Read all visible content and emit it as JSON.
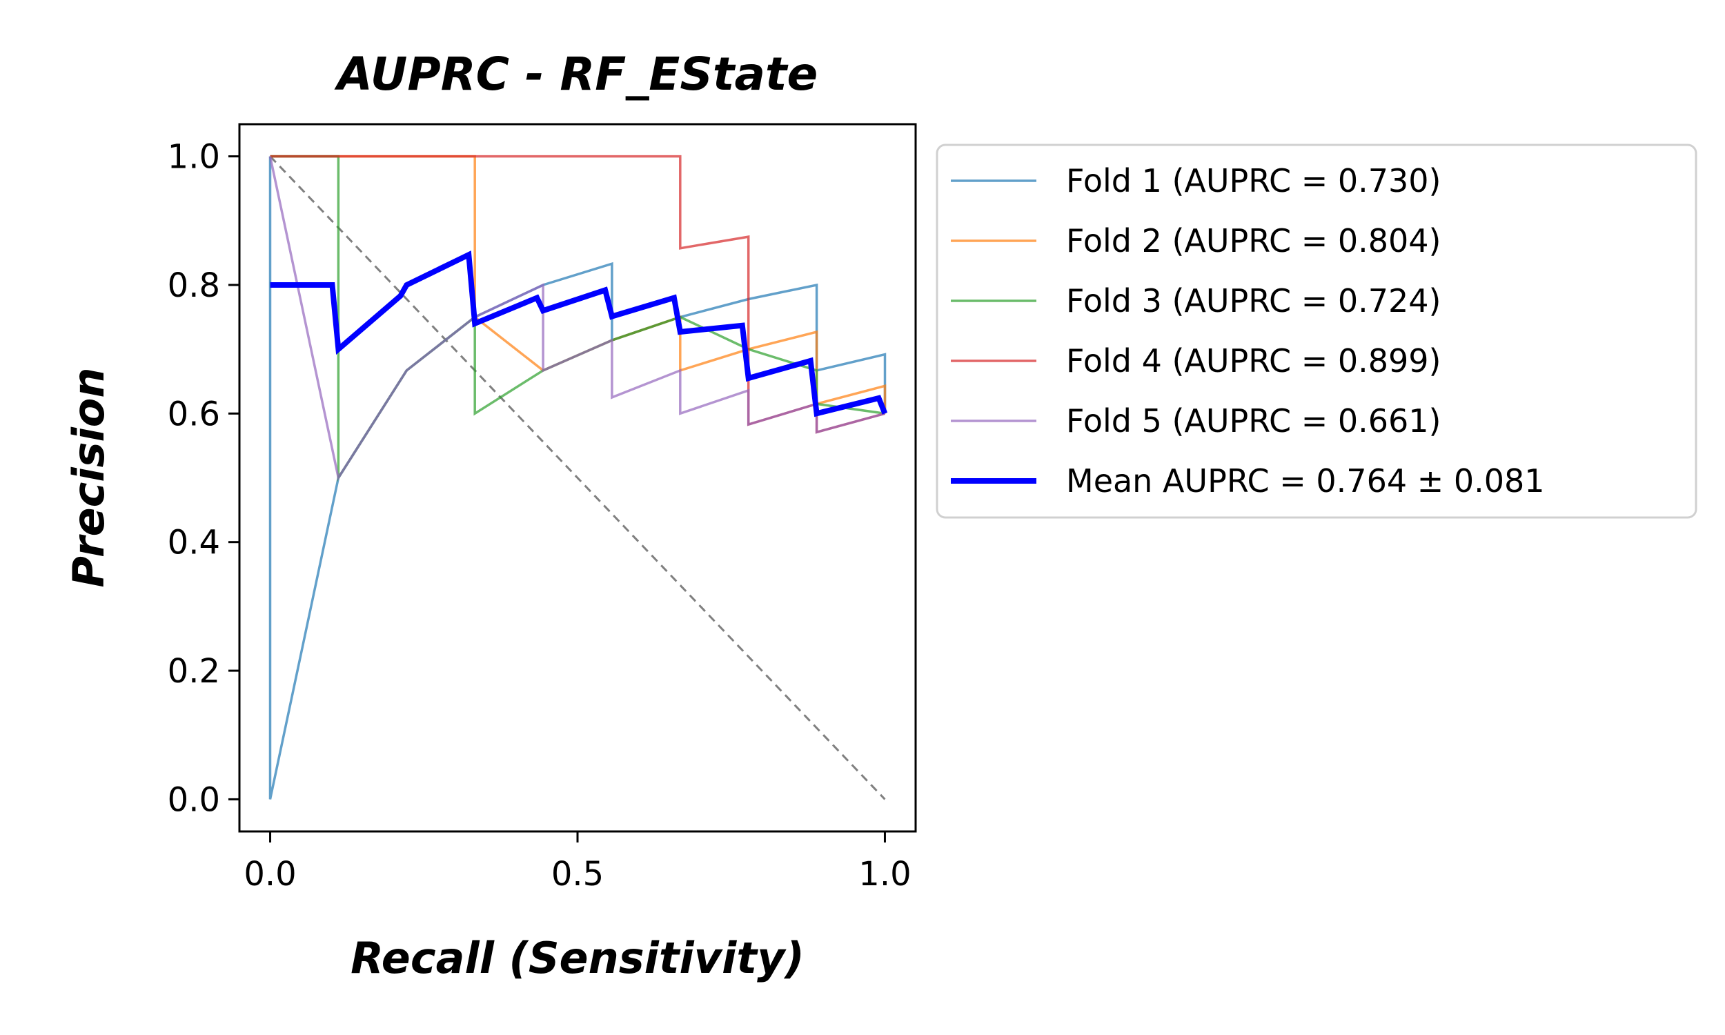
{
  "chart_data": {
    "type": "line",
    "title": "AUPRC - RF_EState",
    "xlabel": "Recall (Sensitivity)",
    "ylabel": "Precision",
    "xlim": [
      -0.05,
      1.05
    ],
    "ylim": [
      -0.05,
      1.05
    ],
    "xticks": [
      0.0,
      0.5,
      1.0
    ],
    "xtick_labels": [
      "0.0",
      "0.5",
      "1.0"
    ],
    "yticks": [
      0.0,
      0.2,
      0.4,
      0.6,
      0.8,
      1.0
    ],
    "ytick_labels": [
      "0.0",
      "0.2",
      "0.4",
      "0.6",
      "0.8",
      "1.0"
    ],
    "grid": false,
    "legend_position": "outside-right-top",
    "reference_line": {
      "x": [
        0,
        1
      ],
      "y": [
        1,
        0
      ],
      "color": "#808080",
      "style": "dashed"
    },
    "series": [
      {
        "name": "Fold 1 (AUPRC = 0.730)",
        "color": "#1f77b4",
        "x": [
          0,
          0,
          0,
          0.111,
          0.222,
          0.333,
          0.444,
          0.556,
          0.556,
          0.667,
          0.778,
          0.889,
          0.889,
          1.0,
          1.0
        ],
        "y": [
          0,
          1.0,
          0,
          0.5,
          0.667,
          0.75,
          0.8,
          0.833,
          0.714,
          0.75,
          0.778,
          0.8,
          0.667,
          0.692,
          0.6
        ]
      },
      {
        "name": "Fold 2 (AUPRC = 0.804)",
        "color": "#ff7f0e",
        "x": [
          0,
          0.333,
          0.333,
          0.444,
          0.556,
          0.667,
          0.667,
          0.778,
          0.889,
          0.889,
          1.0,
          1.0
        ],
        "y": [
          1.0,
          1.0,
          0.75,
          0.667,
          0.714,
          0.75,
          0.667,
          0.7,
          0.727,
          0.615,
          0.643,
          0.6
        ]
      },
      {
        "name": "Fold 3 (AUPRC = 0.724)",
        "color": "#2ca02c",
        "x": [
          0,
          0.111,
          0.111,
          0.222,
          0.333,
          0.333,
          0.444,
          0.556,
          0.667,
          0.778,
          0.889,
          0.889,
          1.0
        ],
        "y": [
          1.0,
          1.0,
          0.5,
          0.667,
          0.75,
          0.6,
          0.667,
          0.714,
          0.75,
          0.7,
          0.667,
          0.615,
          0.6
        ]
      },
      {
        "name": "Fold 4 (AUPRC = 0.899)",
        "color": "#d62728",
        "x": [
          0,
          0.667,
          0.667,
          0.778,
          0.778,
          0.889,
          0.889,
          1.0
        ],
        "y": [
          1.0,
          1.0,
          0.857,
          0.875,
          0.583,
          0.615,
          0.571,
          0.6
        ]
      },
      {
        "name": "Fold 5 (AUPRC = 0.661)",
        "color": "#9467bd",
        "x": [
          0,
          0.111,
          0.222,
          0.333,
          0.444,
          0.444,
          0.556,
          0.556,
          0.667,
          0.667,
          0.778,
          0.778,
          0.889,
          0.889,
          1.0
        ],
        "y": [
          1.0,
          0.5,
          0.667,
          0.75,
          0.8,
          0.667,
          0.714,
          0.625,
          0.667,
          0.6,
          0.636,
          0.583,
          0.615,
          0.571,
          0.6
        ]
      },
      {
        "name": "Mean AUPRC = 0.764 ± 0.081",
        "color": "#0000ff",
        "x": [
          0,
          0.101,
          0.111,
          0.212,
          0.222,
          0.323,
          0.333,
          0.434,
          0.444,
          0.545,
          0.556,
          0.657,
          0.667,
          0.768,
          0.778,
          0.879,
          0.889,
          0.99,
          1.0
        ],
        "y": [
          0.8,
          0.8,
          0.7,
          0.783,
          0.8,
          0.847,
          0.74,
          0.78,
          0.76,
          0.792,
          0.751,
          0.78,
          0.727,
          0.737,
          0.655,
          0.682,
          0.6,
          0.624,
          0.6
        ]
      }
    ]
  }
}
